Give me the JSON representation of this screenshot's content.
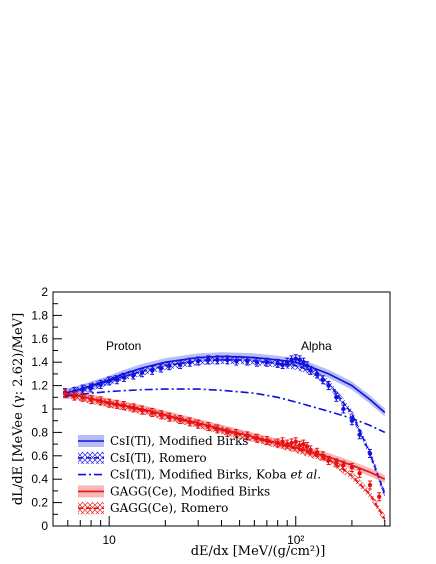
{
  "chart_data": {
    "type": "line",
    "xlabel": "dE/dx [MeV/(g/cm²)]",
    "ylabel": "dL/dE [MeVee (γ: 2.62)/MeV]",
    "xscale": "log",
    "xlim": [
      5,
      320
    ],
    "ylim": [
      0,
      2
    ],
    "x_tick_labels": [
      "10",
      "10²"
    ],
    "y_tick_labels": [
      "0",
      "0.2",
      "0.4",
      "0.6",
      "0.8",
      "1",
      "1.2",
      "1.4",
      "1.6",
      "1.8",
      "2"
    ],
    "annotations": [
      "Proton",
      "Alpha"
    ],
    "grid": false,
    "legend_position": "bottom-left",
    "colors": {
      "csi": "#1010e0",
      "gagg": "#e81010",
      "csi_band": "#9fa8f0",
      "gagg_band": "#f3a0a0"
    },
    "series": [
      {
        "name": "CsI(Tl), Modified Birks",
        "style": "solid-with-band",
        "color": "#1010e0",
        "x": [
          5.8,
          7,
          8,
          10,
          12,
          15,
          20,
          30,
          40,
          50,
          60,
          80,
          100,
          120,
          150,
          200,
          250,
          300
        ],
        "y": [
          1.135,
          1.17,
          1.2,
          1.25,
          1.3,
          1.35,
          1.4,
          1.44,
          1.45,
          1.445,
          1.44,
          1.42,
          1.4,
          1.36,
          1.3,
          1.2,
          1.08,
          0.97
        ]
      },
      {
        "name": "CsI(Tl), Romero",
        "style": "dashed-with-hatched-band",
        "color": "#1010e0",
        "x": [
          5.8,
          7,
          8,
          10,
          12,
          15,
          20,
          30,
          40,
          50,
          60,
          80,
          100,
          120,
          150,
          200,
          250,
          300
        ],
        "y": [
          1.13,
          1.16,
          1.19,
          1.24,
          1.28,
          1.32,
          1.37,
          1.41,
          1.42,
          1.42,
          1.41,
          1.39,
          1.37,
          1.33,
          1.22,
          0.96,
          0.62,
          0.27
        ]
      },
      {
        "name": "CsI(Tl), Modified Birks, Koba et al.",
        "style": "dash-dot",
        "color": "#1010e0",
        "x": [
          5.8,
          8,
          10,
          15,
          20,
          30,
          40,
          60,
          80,
          100,
          150,
          200,
          250,
          300
        ],
        "y": [
          1.11,
          1.135,
          1.15,
          1.165,
          1.17,
          1.17,
          1.16,
          1.135,
          1.1,
          1.06,
          0.98,
          0.92,
          0.86,
          0.8
        ]
      },
      {
        "name": "GAGG(Ce), Modified Birks",
        "style": "solid-with-band",
        "color": "#e81010",
        "x": [
          5.8,
          8,
          10,
          15,
          20,
          30,
          40,
          60,
          80,
          100,
          150,
          200,
          250,
          300
        ],
        "y": [
          1.135,
          1.09,
          1.055,
          1.0,
          0.95,
          0.88,
          0.83,
          0.76,
          0.71,
          0.67,
          0.59,
          0.52,
          0.46,
          0.4
        ]
      },
      {
        "name": "GAGG(Ce), Romero",
        "style": "dashed-with-hatched-band",
        "color": "#e81010",
        "x": [
          5.8,
          8,
          10,
          15,
          20,
          30,
          40,
          60,
          80,
          100,
          150,
          200,
          250,
          300
        ],
        "y": [
          1.13,
          1.08,
          1.045,
          0.99,
          0.94,
          0.87,
          0.82,
          0.75,
          0.7,
          0.66,
          0.57,
          0.43,
          0.27,
          0.06
        ]
      }
    ],
    "measurements": [
      {
        "material": "CsI(Tl)",
        "color": "#1010e0",
        "x": [
          5.8,
          6.5,
          7.2,
          8,
          9,
          10,
          11,
          12,
          13.5,
          15,
          17,
          19,
          21,
          24,
          27,
          30,
          34,
          38,
          43,
          48,
          55,
          62,
          70,
          80,
          85,
          90,
          95,
          100,
          105,
          110,
          115,
          120,
          130,
          140,
          150,
          165,
          180,
          200,
          220,
          250
        ],
        "y": [
          1.14,
          1.15,
          1.17,
          1.18,
          1.21,
          1.24,
          1.25,
          1.27,
          1.29,
          1.31,
          1.33,
          1.35,
          1.37,
          1.38,
          1.4,
          1.41,
          1.42,
          1.42,
          1.42,
          1.41,
          1.41,
          1.4,
          1.4,
          1.39,
          1.38,
          1.4,
          1.42,
          1.43,
          1.42,
          1.4,
          1.37,
          1.33,
          1.3,
          1.25,
          1.2,
          1.1,
          1.0,
          0.9,
          0.78,
          0.62
        ]
      },
      {
        "material": "GAGG(Ce)",
        "color": "#e81010",
        "x": [
          5.8,
          6.5,
          7.2,
          8,
          9,
          10,
          11,
          12,
          13.5,
          15,
          17,
          19,
          21,
          24,
          27,
          30,
          34,
          38,
          43,
          48,
          55,
          62,
          70,
          80,
          85,
          90,
          95,
          100,
          105,
          110,
          115,
          120,
          130,
          140,
          150,
          165,
          180,
          200,
          220,
          250,
          280
        ],
        "y": [
          1.13,
          1.11,
          1.1,
          1.08,
          1.07,
          1.05,
          1.04,
          1.03,
          1.01,
          0.99,
          0.97,
          0.95,
          0.93,
          0.91,
          0.89,
          0.87,
          0.85,
          0.83,
          0.8,
          0.79,
          0.77,
          0.75,
          0.73,
          0.71,
          0.72,
          0.7,
          0.71,
          0.72,
          0.69,
          0.7,
          0.68,
          0.65,
          0.63,
          0.6,
          0.56,
          0.54,
          0.52,
          0.5,
          0.45,
          0.35,
          0.25
        ]
      }
    ]
  }
}
